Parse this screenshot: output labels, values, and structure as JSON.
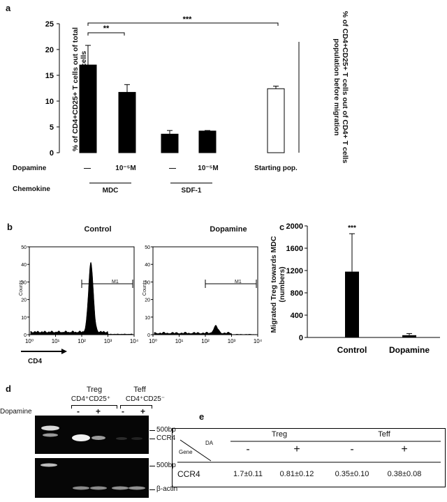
{
  "panel_a": {
    "label": "a",
    "ylabel_left": "% of CD4+CD25+ T cells out of total migrated CD4+ T cells",
    "ylabel_right": "% of CD4+CD25+ T cells out of CD4+ T cells population before migration",
    "row_dopamine": "Dopamine",
    "row_chemokine": "Chemokine",
    "sig_1": "**",
    "sig_2": "***",
    "conditions": [
      "—",
      "10⁻⁵M",
      "—",
      "10⁻⁵M",
      "Starting pop."
    ],
    "chemokines": [
      "MDC",
      "SDF-1"
    ]
  },
  "panel_b": {
    "label": "b",
    "titles": [
      "Control",
      "Dopamine"
    ],
    "ylabel": "Counts",
    "gate": "M1",
    "xaxis": "CD4"
  },
  "panel_c": {
    "label": "c",
    "ylabel": "Migrated Treg towards MDC (numbers)",
    "sig": "***"
  },
  "panel_d": {
    "label": "d",
    "treg": "Treg",
    "teff": "Teff",
    "treg_pheno": "CD4⁺CD25⁺",
    "teff_pheno": "CD4⁺CD25⁻",
    "dopamine": "Dopamine",
    "signs": [
      "-",
      "+",
      "-",
      "+"
    ],
    "bp1": "500bp",
    "ccr4": "CCR4",
    "bp2": "500bp",
    "actin": "β-actin"
  },
  "panel_e": {
    "label": "e",
    "gene": "Gene",
    "da": "DA",
    "treg": "Treg",
    "teff": "Teff",
    "signs": [
      "-",
      "+",
      "-",
      "+"
    ],
    "row_label": "CCR4",
    "values": [
      "1.7±0.11",
      "0.81±0.12",
      "0.35±0.10",
      "0.38±0.08"
    ]
  },
  "chart_data": [
    {
      "type": "bar",
      "panel": "a",
      "ylim": [
        0,
        25
      ],
      "yticks": [
        0,
        5,
        10,
        15,
        20,
        25
      ],
      "categories": [
        "MDC —",
        "MDC 10⁻⁵M",
        "SDF-1 —",
        "SDF-1 10⁻⁵M",
        "Starting pop."
      ],
      "values": [
        17.0,
        11.7,
        3.6,
        4.2,
        12.4
      ],
      "errors": [
        3.8,
        1.5,
        0.7,
        0.1,
        0.5
      ],
      "fill": [
        "#000000",
        "#000000",
        "#000000",
        "#000000",
        "#ffffff"
      ]
    },
    {
      "type": "bar",
      "panel": "c",
      "ylim": [
        0,
        2000
      ],
      "yticks": [
        0,
        400,
        800,
        1200,
        1600,
        2000
      ],
      "categories": [
        "Control",
        "Dopamine"
      ],
      "values": [
        1180,
        40
      ],
      "errors": [
        680,
        30
      ]
    },
    {
      "type": "area",
      "panel": "b",
      "xscale": "log",
      "xlim": [
        1,
        10000
      ],
      "ylim": [
        0,
        50
      ],
      "xticks": [
        "10⁰",
        "10¹",
        "10²",
        "10³",
        "10⁴"
      ],
      "yticks": [
        0,
        10,
        20,
        30,
        40,
        50
      ],
      "series": [
        {
          "name": "Control",
          "peak_log_x": 2.35,
          "peak_y": 40
        },
        {
          "name": "Dopamine",
          "peak_log_x": 2.4,
          "peak_y": 4
        }
      ]
    }
  ]
}
